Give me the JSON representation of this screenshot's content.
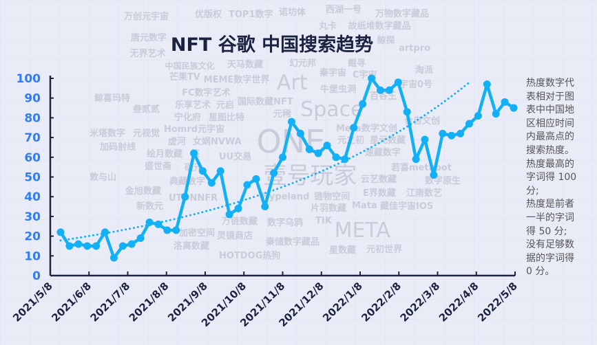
{
  "title": "NFT 谷歌 中国搜索趋势",
  "note_lines": [
    "热度数字代",
    "表相对于图",
    "表中中国地",
    "区相应时间",
    "内最高点的",
    "搜索热度。",
    "热度最高的",
    "字词得 100",
    "分;",
    "热度是前者",
    "一半的字词",
    "得 50 分;",
    "没有足够数",
    "据的字词得",
    "0 分。"
  ],
  "background_words": [
    "万创元宇宙",
    "优版权",
    "TOP1数字",
    "诺坊体",
    "西湖一号",
    "万物数字藏品",
    "丸卡",
    "故纸堆数字藏品",
    "鲸探",
    "唐元数字",
    "无界艺术",
    "artpro",
    "中国民族文化",
    "天马数藏",
    "幻元邦",
    "鲲寻",
    "芒果TV",
    "MEME数字世界",
    "淘派",
    "FC数字艺术",
    "Art",
    "秦宇宙",
    "C宇宙",
    "鲸喜玛特",
    "乐享艺术",
    "元启",
    "国际数藏NFT",
    "牛堡虫洞",
    "宇宙0号",
    "叁贰贰",
    "宁化府",
    "星图比特",
    "Space",
    "百谷王",
    "元稀",
    "Homrd元宇宙",
    "ONE",
    "米塔数字",
    "元视觉",
    "虚河",
    "女娲NVWA",
    "Meta数字文创",
    "合自文创",
    "加码射线",
    "绘月数藏",
    "核",
    "元之初",
    "星元数藏",
    "UU交易",
    "壹号玩家",
    "盛世斋",
    "碳元",
    "速藏数字",
    "若喜metabot",
    "数字原生",
    "敦与山",
    "典藏数字",
    "链物空间",
    "云艺数藏",
    "金旭数藏",
    "UTONNFR",
    "Hypeland",
    "片羽数藏",
    "E界数藏",
    "江南数艺",
    "新数元",
    "TIK",
    "Mata",
    "藏佳宇宙IOS",
    "万链数藏",
    "数字乌鸦",
    "META",
    "加密空间",
    "灵镜商店",
    "秦储数字藏品",
    "星数藏",
    "元初世界",
    "洛离数藏",
    "HOTDOG热狗"
  ],
  "colors": {
    "line": "#13b0f5",
    "trend": "#13b0f5",
    "ytick": "#2f7cf6",
    "xtick": "#1c2340",
    "axis": "#1c2340"
  },
  "chart_data": {
    "type": "line",
    "title": "NFT 谷歌 中国搜索趋势",
    "ylim": [
      0,
      100
    ],
    "yticks": [
      "0",
      "10",
      "20",
      "30",
      "40",
      "50",
      "60",
      "70",
      "80",
      "90",
      "100"
    ],
    "xticks": [
      "2021/5/8",
      "2021/6/8",
      "2021/7/8",
      "2021/8/8",
      "2021/9/8",
      "2021/10/8",
      "2021/11/8",
      "2021/12/8",
      "2022/1/8",
      "2022/2/8",
      "2022/3/8",
      "2022/4/8",
      "2022/5/8"
    ],
    "x_range": [
      "2021/5/8",
      "2022/5/8"
    ],
    "frequency": "weekly",
    "values": [
      22,
      15,
      16,
      15,
      15,
      22,
      9,
      15,
      16,
      19,
      27,
      26,
      23,
      23,
      40,
      62,
      53,
      47,
      53,
      31,
      34,
      46,
      49,
      35,
      52,
      60,
      78,
      72,
      64,
      62,
      66,
      60,
      59,
      75,
      87,
      100,
      94,
      94,
      98,
      83,
      59,
      69,
      51,
      72,
      71,
      72,
      77,
      81,
      97,
      82,
      88,
      85
    ],
    "trendline": "exponential (dotted)",
    "grid": true
  }
}
